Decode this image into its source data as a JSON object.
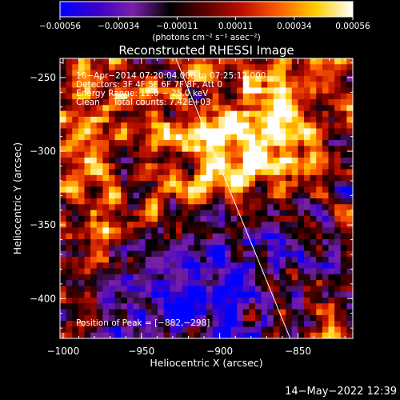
{
  "colorbar": {
    "tick_labels": [
      "−0.00056",
      "−0.00034",
      "−0.00011",
      "0.00011",
      "0.00034",
      "0.00056"
    ],
    "unit_label": "(photons cm⁻² s⁻¹ asec⁻²)",
    "range": [
      -0.00056,
      0.00056
    ],
    "stops": [
      "#0000ff",
      "#3a00c8",
      "#7a20a8",
      "#000000",
      "#600000",
      "#c01000",
      "#ff6000",
      "#ffd000",
      "#ffffff"
    ]
  },
  "annotations": {
    "line1": "10−Apr−2014 07:20:04.000 to 07:25:12.000",
    "line2": "Detectors: 3F 4F 5F 6F 7F 8F, Att 0",
    "line3": "Energy Range: 12.0 − 25.0 keV",
    "line4": "Clean     Total counts: 7.42E+03",
    "peak": "Position of Peak = [−882,−298]"
  },
  "footer": {
    "timestamp": "14−May−2022 12:39"
  },
  "chart_data": {
    "type": "heatmap",
    "title": "Reconstructed RHESSI Image",
    "xlabel": "Heliocentric X (arcsec)",
    "ylabel": "Heliocentric Y (arcsec)",
    "xlim": [
      -1002,
      -815
    ],
    "ylim": [
      -427,
      -237
    ],
    "xticks": [
      -1000,
      -950,
      -900,
      -850
    ],
    "xtick_labels": [
      "−1000",
      "−950",
      "−900",
      "−850"
    ],
    "yticks": [
      -250,
      -300,
      -350,
      -400
    ],
    "ytick_labels": [
      "−250",
      "−300",
      "−350",
      "−400"
    ],
    "peak_position": [
      -882,
      -298
    ],
    "limb_line": [
      [
        -928,
        -237
      ],
      [
        -855,
        -427
      ]
    ],
    "grid_cells": 48
  }
}
